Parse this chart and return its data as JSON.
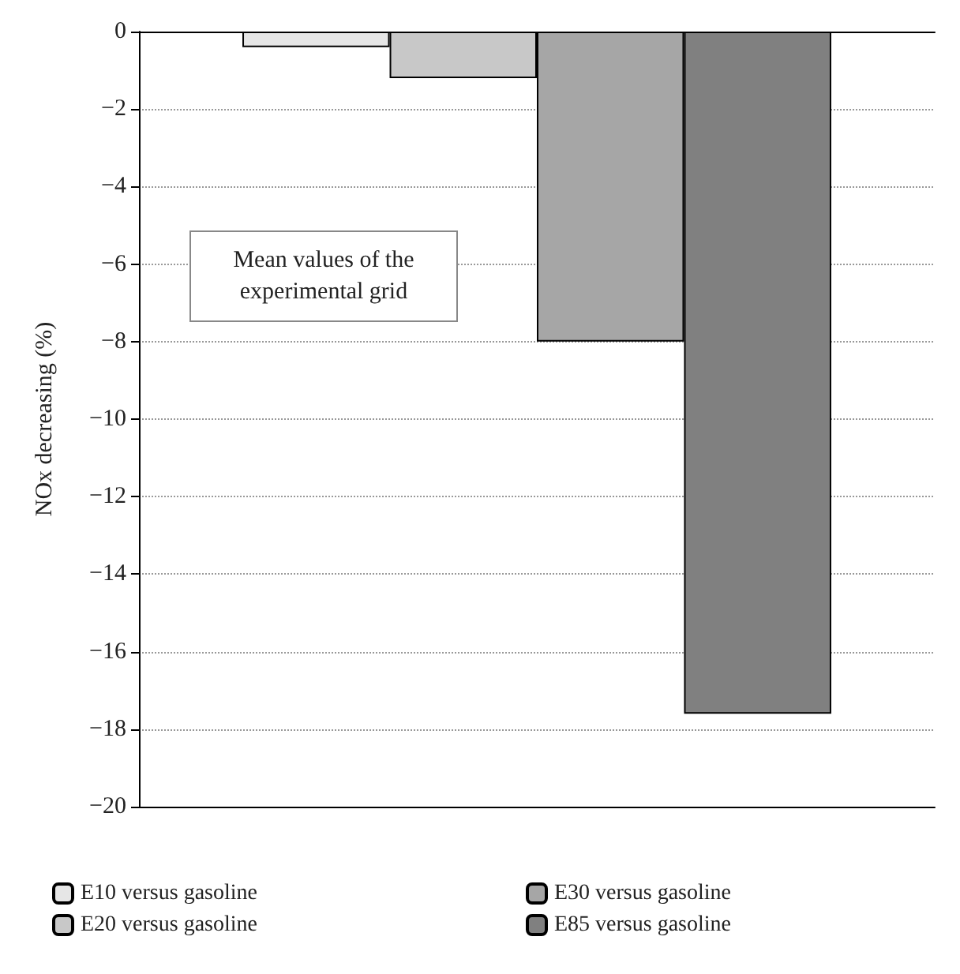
{
  "chart_data": {
    "type": "bar",
    "ylabel": "NOx decreasing (%)",
    "categories": [
      null
    ],
    "series": [
      {
        "name": "E10 versus gasoline",
        "color": "#e6e6e6",
        "values": [
          -0.4
        ]
      },
      {
        "name": "E20 versus gasoline",
        "color": "#c8c8c8",
        "values": [
          -1.2
        ]
      },
      {
        "name": "E30 versus gasoline",
        "color": "#a6a6a6",
        "values": [
          -8.0
        ]
      },
      {
        "name": "E85 versus gasoline",
        "color": "#808080",
        "values": [
          -17.6
        ]
      }
    ],
    "ylim": [
      -20,
      0
    ],
    "yticks": [
      -20,
      -18,
      -16,
      -14,
      -12,
      -10,
      -8,
      -6,
      -4,
      -2,
      0
    ],
    "grid": "y",
    "legend": "bottom",
    "annotations": [
      "Mean values of the experimental grid"
    ]
  }
}
